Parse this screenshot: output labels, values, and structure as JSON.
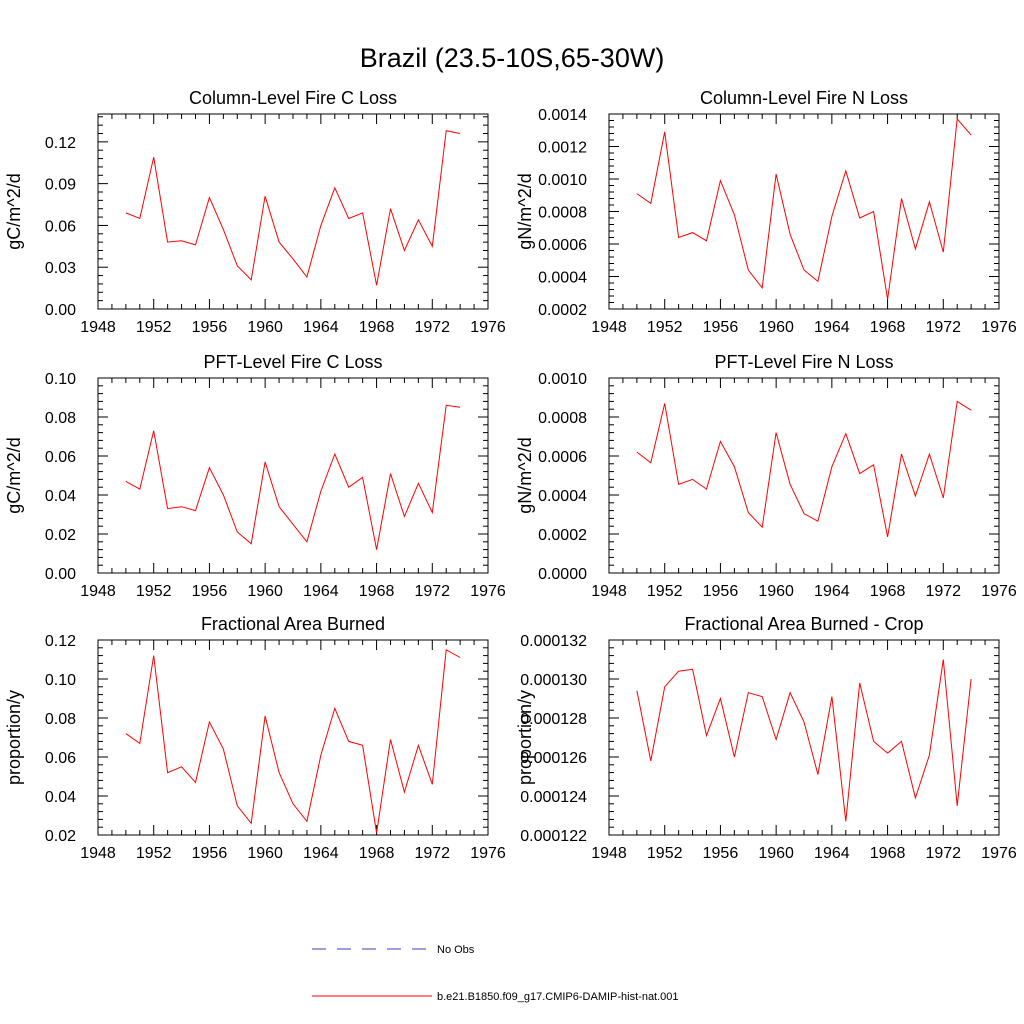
{
  "figure": {
    "title": "Brazil (23.5-10S,65-30W)"
  },
  "legend": {
    "entries": [
      {
        "label": "No Obs",
        "color": "#3b3bbf",
        "style": "dashed"
      },
      {
        "label": "b.e21.B1850.f09_g17.CMIP6-DAMIP-hist-nat.001",
        "color": "#ff0000",
        "style": "solid"
      }
    ]
  },
  "chart_data": [
    {
      "type": "line",
      "title": "Column-Level Fire C Loss",
      "xlabel": "",
      "ylabel": "gC/m^2/d",
      "xlim": [
        1948,
        1976
      ],
      "ylim": [
        0,
        0.14
      ],
      "xticks": [
        1948,
        1952,
        1956,
        1960,
        1964,
        1968,
        1972,
        1976
      ],
      "yticks": [
        0.0,
        0.03,
        0.06,
        0.09,
        0.12
      ],
      "ytick_labels": [
        "0.00",
        "0.03",
        "0.06",
        "0.09",
        "0.12"
      ],
      "x": [
        1950,
        1951,
        1952,
        1953,
        1954,
        1955,
        1956,
        1957,
        1958,
        1959,
        1960,
        1961,
        1962,
        1963,
        1964,
        1965,
        1966,
        1967,
        1968,
        1969,
        1970,
        1971,
        1972,
        1973,
        1974
      ],
      "series": [
        {
          "color": "#ff0000",
          "values": [
            0.069,
            0.065,
            0.109,
            0.048,
            0.049,
            0.046,
            0.08,
            0.057,
            0.031,
            0.021,
            0.081,
            0.048,
            0.036,
            0.023,
            0.06,
            0.087,
            0.065,
            0.069,
            0.017,
            0.072,
            0.042,
            0.064,
            0.045,
            0.128,
            0.126
          ]
        }
      ]
    },
    {
      "type": "line",
      "title": "Column-Level Fire N Loss",
      "xlabel": "",
      "ylabel": "gN/m^2/d",
      "xlim": [
        1948,
        1976
      ],
      "ylim": [
        0.0002,
        0.0014
      ],
      "xticks": [
        1948,
        1952,
        1956,
        1960,
        1964,
        1968,
        1972,
        1976
      ],
      "yticks": [
        0.0002,
        0.0004,
        0.0006,
        0.0008,
        0.001,
        0.0012,
        0.0014
      ],
      "ytick_labels": [
        "0.0002",
        "0.0004",
        "0.0006",
        "0.0008",
        "0.0010",
        "0.0012",
        "0.0014"
      ],
      "x": [
        1950,
        1951,
        1952,
        1953,
        1954,
        1955,
        1956,
        1957,
        1958,
        1959,
        1960,
        1961,
        1962,
        1963,
        1964,
        1965,
        1966,
        1967,
        1968,
        1969,
        1970,
        1971,
        1972,
        1973,
        1974
      ],
      "series": [
        {
          "color": "#ff0000",
          "values": [
            0.00091,
            0.00085,
            0.00129,
            0.00064,
            0.00067,
            0.00062,
            0.00099,
            0.00078,
            0.00044,
            0.00033,
            0.00103,
            0.00066,
            0.00044,
            0.00037,
            0.00077,
            0.00105,
            0.00076,
            0.0008,
            0.00026,
            0.00088,
            0.00057,
            0.00086,
            0.00055,
            0.00137,
            0.00127
          ]
        }
      ]
    },
    {
      "type": "line",
      "title": "PFT-Level Fire C Loss",
      "xlabel": "",
      "ylabel": "gC/m^2/d",
      "xlim": [
        1948,
        1976
      ],
      "ylim": [
        0,
        0.1
      ],
      "xticks": [
        1948,
        1952,
        1956,
        1960,
        1964,
        1968,
        1972,
        1976
      ],
      "yticks": [
        0.0,
        0.02,
        0.04,
        0.06,
        0.08,
        0.1
      ],
      "ytick_labels": [
        "0.00",
        "0.02",
        "0.04",
        "0.06",
        "0.08",
        "0.10"
      ],
      "x": [
        1950,
        1951,
        1952,
        1953,
        1954,
        1955,
        1956,
        1957,
        1958,
        1959,
        1960,
        1961,
        1962,
        1963,
        1964,
        1965,
        1966,
        1967,
        1968,
        1969,
        1970,
        1971,
        1972,
        1973,
        1974
      ],
      "series": [
        {
          "color": "#ff0000",
          "values": [
            0.047,
            0.043,
            0.073,
            0.033,
            0.034,
            0.032,
            0.054,
            0.04,
            0.021,
            0.015,
            0.057,
            0.034,
            0.025,
            0.016,
            0.042,
            0.061,
            0.044,
            0.049,
            0.012,
            0.051,
            0.029,
            0.046,
            0.031,
            0.086,
            0.085
          ]
        }
      ]
    },
    {
      "type": "line",
      "title": "PFT-Level Fire N Loss",
      "xlabel": "",
      "ylabel": "gN/m^2/d",
      "xlim": [
        1948,
        1976
      ],
      "ylim": [
        0,
        0.001
      ],
      "xticks": [
        1948,
        1952,
        1956,
        1960,
        1964,
        1968,
        1972,
        1976
      ],
      "yticks": [
        0.0,
        0.0002,
        0.0004,
        0.0006,
        0.0008,
        0.001
      ],
      "ytick_labels": [
        "0.0000",
        "0.0002",
        "0.0004",
        "0.0006",
        "0.0008",
        "0.0010"
      ],
      "x": [
        1950,
        1951,
        1952,
        1953,
        1954,
        1955,
        1956,
        1957,
        1958,
        1959,
        1960,
        1961,
        1962,
        1963,
        1964,
        1965,
        1966,
        1967,
        1968,
        1969,
        1970,
        1971,
        1972,
        1973,
        1974
      ],
      "series": [
        {
          "color": "#ff0000",
          "values": [
            0.00062,
            0.000565,
            0.00087,
            0.000455,
            0.00048,
            0.00043,
            0.000675,
            0.000545,
            0.00031,
            0.000235,
            0.00072,
            0.000455,
            0.000305,
            0.000265,
            0.000545,
            0.000715,
            0.00051,
            0.000555,
            0.000185,
            0.00061,
            0.000395,
            0.00061,
            0.000385,
            0.00088,
            0.000835
          ]
        }
      ]
    },
    {
      "type": "line",
      "title": "Fractional Area Burned",
      "xlabel": "",
      "ylabel": "proportion/y",
      "xlim": [
        1948,
        1976
      ],
      "ylim": [
        0.02,
        0.12
      ],
      "xticks": [
        1948,
        1952,
        1956,
        1960,
        1964,
        1968,
        1972,
        1976
      ],
      "yticks": [
        0.02,
        0.04,
        0.06,
        0.08,
        0.1,
        0.12
      ],
      "ytick_labels": [
        "0.02",
        "0.04",
        "0.06",
        "0.08",
        "0.10",
        "0.12"
      ],
      "x": [
        1950,
        1951,
        1952,
        1953,
        1954,
        1955,
        1956,
        1957,
        1958,
        1959,
        1960,
        1961,
        1962,
        1963,
        1964,
        1965,
        1966,
        1967,
        1968,
        1969,
        1970,
        1971,
        1972,
        1973,
        1974
      ],
      "series": [
        {
          "color": "#ff0000",
          "values": [
            0.072,
            0.067,
            0.112,
            0.052,
            0.055,
            0.047,
            0.078,
            0.064,
            0.035,
            0.026,
            0.081,
            0.052,
            0.036,
            0.027,
            0.061,
            0.085,
            0.068,
            0.066,
            0.021,
            0.069,
            0.042,
            0.066,
            0.046,
            0.115,
            0.111
          ]
        }
      ]
    },
    {
      "type": "line",
      "title": "Fractional Area Burned - Crop",
      "xlabel": "",
      "ylabel": "proportion/y",
      "xlim": [
        1948,
        1976
      ],
      "ylim": [
        0.000122,
        0.000132
      ],
      "xticks": [
        1948,
        1952,
        1956,
        1960,
        1964,
        1968,
        1972,
        1976
      ],
      "yticks": [
        0.000122,
        0.000124,
        0.000126,
        0.000128,
        0.00013,
        0.000132
      ],
      "ytick_labels": [
        "0.000122",
        "0.000124",
        "0.000126",
        "0.000128",
        "0.000130",
        "0.000132"
      ],
      "x": [
        1950,
        1951,
        1952,
        1953,
        1954,
        1955,
        1956,
        1957,
        1958,
        1959,
        1960,
        1961,
        1962,
        1963,
        1964,
        1965,
        1966,
        1967,
        1968,
        1969,
        1970,
        1971,
        1972,
        1973,
        1974
      ],
      "series": [
        {
          "color": "#ff0000",
          "values": [
            0.0001294,
            0.0001258,
            0.0001296,
            0.0001304,
            0.0001305,
            0.0001271,
            0.000129,
            0.000126,
            0.0001293,
            0.0001291,
            0.0001269,
            0.0001293,
            0.0001278,
            0.0001251,
            0.0001291,
            0.0001227,
            0.0001298,
            0.0001268,
            0.0001262,
            0.0001268,
            0.0001239,
            0.0001261,
            0.000131,
            0.0001235,
            0.00013
          ]
        }
      ]
    }
  ]
}
